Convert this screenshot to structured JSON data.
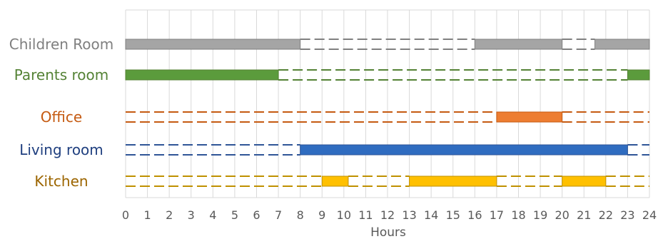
{
  "chart_data": {
    "type": "bar",
    "subtype": "timeline-gantt",
    "xlabel": "Hours",
    "xlim": [
      0,
      24
    ],
    "x_ticks": [
      0,
      1,
      2,
      3,
      4,
      5,
      6,
      7,
      8,
      9,
      10,
      11,
      12,
      13,
      14,
      15,
      16,
      17,
      18,
      19,
      20,
      21,
      22,
      23,
      24
    ],
    "grid": "vertical",
    "rows": [
      {
        "name": "Children Room",
        "label_color": "#7f7f7f",
        "bar_color": "#a5a5a5",
        "dash_color": "#808080",
        "occupied": [
          [
            0,
            8
          ],
          [
            16,
            20
          ],
          [
            21.5,
            24
          ]
        ],
        "dashed": [
          [
            8,
            16
          ],
          [
            20,
            21.5
          ]
        ]
      },
      {
        "name": "Parents room",
        "label_color": "#548235",
        "bar_color": "#5b9b3c",
        "dash_color": "#548235",
        "occupied": [
          [
            0,
            7
          ],
          [
            23,
            24
          ]
        ],
        "dashed": [
          [
            7,
            23
          ]
        ]
      },
      {
        "name": "Office",
        "label_color": "#c55a11",
        "bar_color": "#ed7d31",
        "dash_color": "#c55a11",
        "occupied": [
          [
            17,
            20
          ]
        ],
        "dashed": [
          [
            0,
            17
          ],
          [
            20,
            24
          ]
        ]
      },
      {
        "name": "Living room",
        "label_color": "#1f3f7f",
        "bar_color": "#2f6cc0",
        "dash_color": "#2f5597",
        "occupied": [
          [
            8,
            23
          ]
        ],
        "dashed": [
          [
            0,
            8
          ],
          [
            23,
            24
          ]
        ]
      },
      {
        "name": "Kitchen",
        "label_color": "#9c6500",
        "bar_color": "#ffc000",
        "dash_color": "#bf9000",
        "occupied": [
          [
            9,
            10.2
          ],
          [
            13,
            17
          ],
          [
            20,
            22
          ]
        ],
        "dashed": [
          [
            0,
            9
          ],
          [
            10.2,
            13
          ],
          [
            17,
            20
          ],
          [
            22,
            24
          ]
        ]
      }
    ]
  }
}
